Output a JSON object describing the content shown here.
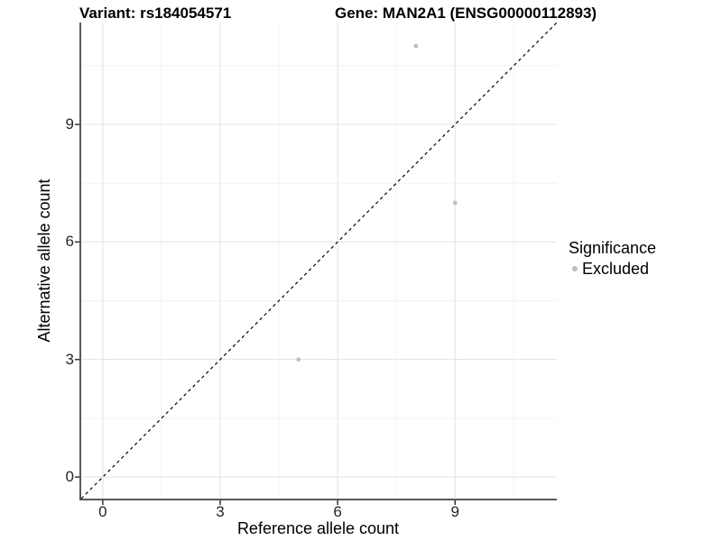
{
  "header": {
    "variant_title": "Variant: rs184054571",
    "gene_title": "Gene: MAN2A1 (ENSG00000112893)"
  },
  "chart_data": {
    "type": "scatter",
    "xlabel": "Reference allele count",
    "ylabel": "Alternative allele count",
    "x_ticks": [
      0,
      3,
      6,
      9
    ],
    "y_ticks": [
      0,
      3,
      6,
      9
    ],
    "x_minor_ticks": [
      1.5,
      4.5,
      7.5,
      10.5
    ],
    "y_minor_ticks": [
      1.5,
      4.5,
      7.5,
      10.5
    ],
    "xlim": [
      -0.55,
      11.6
    ],
    "ylim": [
      -0.55,
      11.6
    ],
    "grid": "major+minor",
    "legend_position": "right",
    "reference_line": {
      "type": "identity",
      "style": "dashed",
      "color": "#000000"
    },
    "series": [
      {
        "name": "Excluded",
        "color": "#bebebe",
        "points": [
          {
            "x": 8,
            "y": 11
          },
          {
            "x": 9,
            "y": 7
          },
          {
            "x": 5,
            "y": 3
          }
        ]
      }
    ]
  },
  "legend": {
    "title": "Significance",
    "items": [
      {
        "label": "Excluded",
        "color": "#bebebe",
        "marker": "circle"
      }
    ]
  },
  "colors": {
    "axis_line": "#595959",
    "tick_mark": "#333333",
    "tick_label": "#262626",
    "grid_major": "#e4e4e4",
    "grid_minor": "#f0f0f0",
    "point": "#bebebe",
    "background": "#ffffff"
  }
}
